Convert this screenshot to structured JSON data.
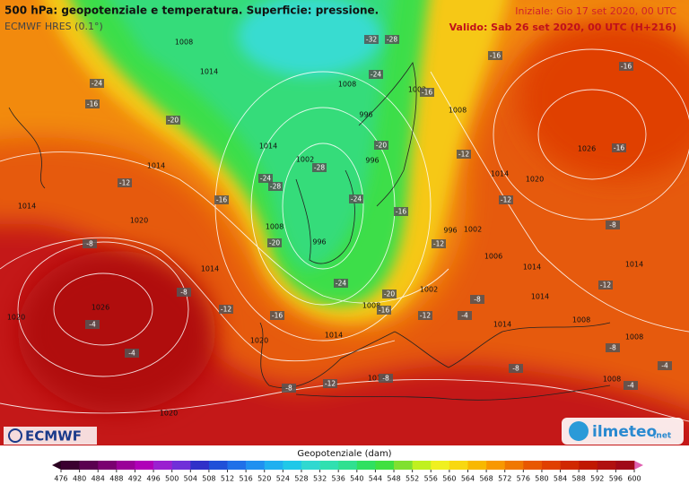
{
  "header": {
    "title": "500 hPa: geopotenziale e temperatura. Superficie: pressione.",
    "model": "ECMWF HRES (0.1°)",
    "initial": "Iniziale: Gio 17 set 2020, 00 UTC",
    "valid": "Valido: Sab 26 set 2020, 00 UTC (H+216)"
  },
  "pressure_labels": [
    1008,
    1014,
    1008,
    996,
    1014,
    1002,
    996,
    1014,
    1014,
    1020,
    1008,
    996,
    1014,
    1020,
    1026,
    1020,
    1014,
    1008,
    1002,
    1014,
    1020,
    1008,
    1002,
    996,
    1002,
    1006,
    1014,
    1020,
    1026,
    1014,
    1014,
    1014,
    1008,
    1008,
    1014,
    1008
  ],
  "temperature_labels": [
    -32,
    -28,
    -24,
    -16,
    -20,
    -24,
    -16,
    -20,
    -28,
    -24,
    -28,
    -12,
    -16,
    -24,
    -16,
    -20,
    -8,
    -12,
    -24,
    -20,
    -16,
    -8,
    -12,
    -16,
    -4,
    -4,
    -12,
    -8,
    -12,
    -8,
    -8,
    -16,
    -16,
    -16,
    -12,
    -12,
    -8,
    -12,
    -8,
    -4,
    -8,
    -4,
    -4
  ],
  "logos": {
    "ecmwf": "ECMWF",
    "ilmeteo": "ilmeteo",
    "ilmeteo_suffix": ".net"
  },
  "colorbar": {
    "title": "Geopotenziale (dam)",
    "ticks": [
      476,
      480,
      484,
      488,
      492,
      496,
      500,
      504,
      508,
      512,
      516,
      520,
      524,
      528,
      532,
      536,
      540,
      544,
      548,
      552,
      556,
      560,
      564,
      568,
      572,
      576,
      580,
      584,
      588,
      592,
      596,
      600
    ],
    "colors": [
      "#3b0030",
      "#5a0050",
      "#7a0070",
      "#9a0098",
      "#b000b8",
      "#9a20d0",
      "#7030d8",
      "#3030c8",
      "#2050d8",
      "#2070e8",
      "#2090f0",
      "#20b0f0",
      "#20c8e8",
      "#30d8d0",
      "#30e0b0",
      "#30e090",
      "#30e060",
      "#40e040",
      "#80e030",
      "#c0f020",
      "#f0f020",
      "#f8d810",
      "#f8b800",
      "#f89800",
      "#f07800",
      "#e85800",
      "#e04000",
      "#d02800",
      "#c01800",
      "#b01010",
      "#a00818"
    ]
  }
}
